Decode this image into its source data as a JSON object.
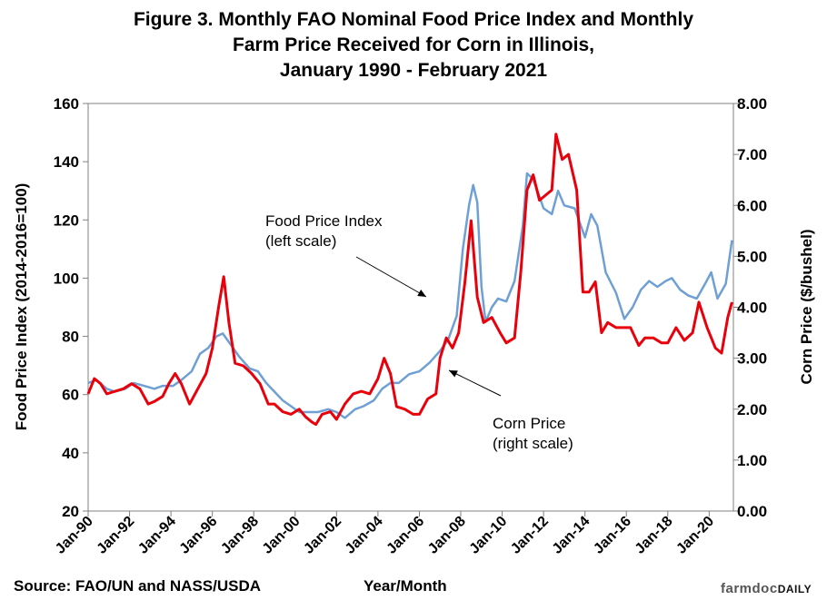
{
  "chart_data": {
    "type": "line",
    "title_lines": [
      "Figure 3. Monthly FAO Nominal Food Price Index and Monthly",
      "Farm Price Received for Corn in Illinois,",
      "January 1990 - February 2021"
    ],
    "xlabel": "Year/Month",
    "ylabel_left": "Food Price Index (2014-2016=100)",
    "ylabel_right": "Corn Price ($/bushel)",
    "ylim_left": [
      20,
      160
    ],
    "ylim_right": [
      0,
      8
    ],
    "xlim": [
      1990,
      2021.17
    ],
    "left_ticks": [
      "20",
      "40",
      "60",
      "80",
      "100",
      "120",
      "140",
      "160"
    ],
    "right_ticks": [
      "0.00",
      "1.00",
      "2.00",
      "3.00",
      "4.00",
      "5.00",
      "6.00",
      "7.00",
      "8.00"
    ],
    "x_ticks": [
      "Jan-90",
      "Jan-92",
      "Jan-94",
      "Jan-96",
      "Jan-98",
      "Jan-00",
      "Jan-02",
      "Jan-04",
      "Jan-06",
      "Jan-08",
      "Jan-10",
      "Jan-12",
      "Jan-14",
      "Jan-16",
      "Jan-18",
      "Jan-20"
    ],
    "series": [
      {
        "name": "Food Price Index",
        "axis": "left",
        "color": "#6fa0d4",
        "points": [
          [
            1990.0,
            64
          ],
          [
            1990.4,
            65
          ],
          [
            1990.9,
            62
          ],
          [
            1991.3,
            61
          ],
          [
            1991.8,
            62
          ],
          [
            1992.2,
            64
          ],
          [
            1992.7,
            63
          ],
          [
            1993.2,
            62
          ],
          [
            1993.6,
            63
          ],
          [
            1994.1,
            63
          ],
          [
            1994.5,
            65
          ],
          [
            1995.0,
            68
          ],
          [
            1995.4,
            74
          ],
          [
            1995.8,
            76
          ],
          [
            1996.2,
            80
          ],
          [
            1996.5,
            81
          ],
          [
            1996.9,
            77
          ],
          [
            1997.3,
            73
          ],
          [
            1997.8,
            69
          ],
          [
            1998.2,
            68
          ],
          [
            1998.6,
            64
          ],
          [
            1999.0,
            61
          ],
          [
            1999.4,
            58
          ],
          [
            1999.8,
            56
          ],
          [
            2000.2,
            54
          ],
          [
            2000.7,
            54
          ],
          [
            2001.1,
            54
          ],
          [
            2001.6,
            55
          ],
          [
            2002.0,
            54
          ],
          [
            2002.4,
            52
          ],
          [
            2002.9,
            55
          ],
          [
            2003.3,
            56
          ],
          [
            2003.8,
            58
          ],
          [
            2004.2,
            62
          ],
          [
            2004.6,
            64
          ],
          [
            2005.0,
            64
          ],
          [
            2005.5,
            67
          ],
          [
            2006.0,
            68
          ],
          [
            2006.5,
            71
          ],
          [
            2007.0,
            75
          ],
          [
            2007.4,
            79
          ],
          [
            2007.8,
            87
          ],
          [
            2008.1,
            110
          ],
          [
            2008.4,
            125
          ],
          [
            2008.6,
            132
          ],
          [
            2008.8,
            126
          ],
          [
            2009.0,
            97
          ],
          [
            2009.2,
            85
          ],
          [
            2009.5,
            90
          ],
          [
            2009.8,
            93
          ],
          [
            2010.2,
            92
          ],
          [
            2010.6,
            99
          ],
          [
            2011.0,
            118
          ],
          [
            2011.2,
            136
          ],
          [
            2011.5,
            134
          ],
          [
            2011.8,
            128
          ],
          [
            2012.0,
            124
          ],
          [
            2012.4,
            122
          ],
          [
            2012.7,
            130
          ],
          [
            2013.0,
            125
          ],
          [
            2013.5,
            124
          ],
          [
            2014.0,
            114
          ],
          [
            2014.3,
            122
          ],
          [
            2014.6,
            118
          ],
          [
            2015.0,
            102
          ],
          [
            2015.5,
            95
          ],
          [
            2015.9,
            86
          ],
          [
            2016.3,
            90
          ],
          [
            2016.7,
            96
          ],
          [
            2017.1,
            99
          ],
          [
            2017.5,
            97
          ],
          [
            2017.9,
            99
          ],
          [
            2018.2,
            100
          ],
          [
            2018.6,
            96
          ],
          [
            2019.0,
            94
          ],
          [
            2019.4,
            93
          ],
          [
            2019.8,
            98
          ],
          [
            2020.1,
            102
          ],
          [
            2020.4,
            93
          ],
          [
            2020.8,
            98
          ],
          [
            2021.1,
            113
          ]
        ]
      },
      {
        "name": "Corn Price",
        "axis": "right",
        "color": "#e8000b",
        "points": [
          [
            1990.0,
            2.3
          ],
          [
            1990.3,
            2.6
          ],
          [
            1990.6,
            2.5
          ],
          [
            1990.9,
            2.3
          ],
          [
            1991.3,
            2.35
          ],
          [
            1991.7,
            2.4
          ],
          [
            1992.1,
            2.5
          ],
          [
            1992.5,
            2.4
          ],
          [
            1992.9,
            2.1
          ],
          [
            1993.2,
            2.15
          ],
          [
            1993.6,
            2.25
          ],
          [
            1993.9,
            2.5
          ],
          [
            1994.2,
            2.7
          ],
          [
            1994.5,
            2.5
          ],
          [
            1994.9,
            2.1
          ],
          [
            1995.3,
            2.4
          ],
          [
            1995.7,
            2.7
          ],
          [
            1996.0,
            3.2
          ],
          [
            1996.3,
            4.0
          ],
          [
            1996.55,
            4.6
          ],
          [
            1996.8,
            3.7
          ],
          [
            1997.1,
            2.9
          ],
          [
            1997.5,
            2.85
          ],
          [
            1997.9,
            2.7
          ],
          [
            1998.3,
            2.5
          ],
          [
            1998.7,
            2.1
          ],
          [
            1999.0,
            2.1
          ],
          [
            1999.4,
            1.95
          ],
          [
            1999.8,
            1.9
          ],
          [
            2000.2,
            2.0
          ],
          [
            2000.5,
            1.85
          ],
          [
            2000.8,
            1.75
          ],
          [
            2001.0,
            1.7
          ],
          [
            2001.3,
            1.9
          ],
          [
            2001.7,
            1.95
          ],
          [
            2002.0,
            1.8
          ],
          [
            2002.4,
            2.1
          ],
          [
            2002.8,
            2.3
          ],
          [
            2003.2,
            2.35
          ],
          [
            2003.6,
            2.3
          ],
          [
            2004.0,
            2.6
          ],
          [
            2004.3,
            3.0
          ],
          [
            2004.6,
            2.7
          ],
          [
            2004.9,
            2.05
          ],
          [
            2005.3,
            2.0
          ],
          [
            2005.7,
            1.9
          ],
          [
            2006.0,
            1.9
          ],
          [
            2006.4,
            2.2
          ],
          [
            2006.8,
            2.3
          ],
          [
            2007.0,
            3.0
          ],
          [
            2007.3,
            3.4
          ],
          [
            2007.6,
            3.2
          ],
          [
            2007.9,
            3.5
          ],
          [
            2008.2,
            4.5
          ],
          [
            2008.5,
            5.7
          ],
          [
            2008.8,
            4.2
          ],
          [
            2009.1,
            3.7
          ],
          [
            2009.5,
            3.8
          ],
          [
            2009.9,
            3.5
          ],
          [
            2010.2,
            3.3
          ],
          [
            2010.6,
            3.4
          ],
          [
            2010.9,
            4.7
          ],
          [
            2011.2,
            6.3
          ],
          [
            2011.5,
            6.6
          ],
          [
            2011.8,
            6.1
          ],
          [
            2012.1,
            6.2
          ],
          [
            2012.4,
            6.3
          ],
          [
            2012.6,
            7.4
          ],
          [
            2012.9,
            6.9
          ],
          [
            2013.2,
            7.0
          ],
          [
            2013.6,
            6.3
          ],
          [
            2013.9,
            4.3
          ],
          [
            2014.2,
            4.3
          ],
          [
            2014.5,
            4.5
          ],
          [
            2014.8,
            3.5
          ],
          [
            2015.1,
            3.7
          ],
          [
            2015.5,
            3.6
          ],
          [
            2015.9,
            3.6
          ],
          [
            2016.2,
            3.6
          ],
          [
            2016.6,
            3.25
          ],
          [
            2016.9,
            3.4
          ],
          [
            2017.3,
            3.4
          ],
          [
            2017.7,
            3.3
          ],
          [
            2018.0,
            3.3
          ],
          [
            2018.4,
            3.6
          ],
          [
            2018.8,
            3.35
          ],
          [
            2019.2,
            3.5
          ],
          [
            2019.5,
            4.1
          ],
          [
            2019.9,
            3.6
          ],
          [
            2020.3,
            3.2
          ],
          [
            2020.6,
            3.1
          ],
          [
            2020.9,
            3.8
          ],
          [
            2021.1,
            4.1
          ]
        ]
      }
    ],
    "annotations": [
      {
        "lines": [
          "Food Price Index",
          "(left scale)"
        ]
      },
      {
        "lines": [
          "Corn Price",
          "(right scale)"
        ]
      }
    ],
    "grid": false
  },
  "source": "Source: FAO/UN and NASS/USDA",
  "brand": {
    "part1": "farmdoc",
    "part2": "DAILY"
  }
}
